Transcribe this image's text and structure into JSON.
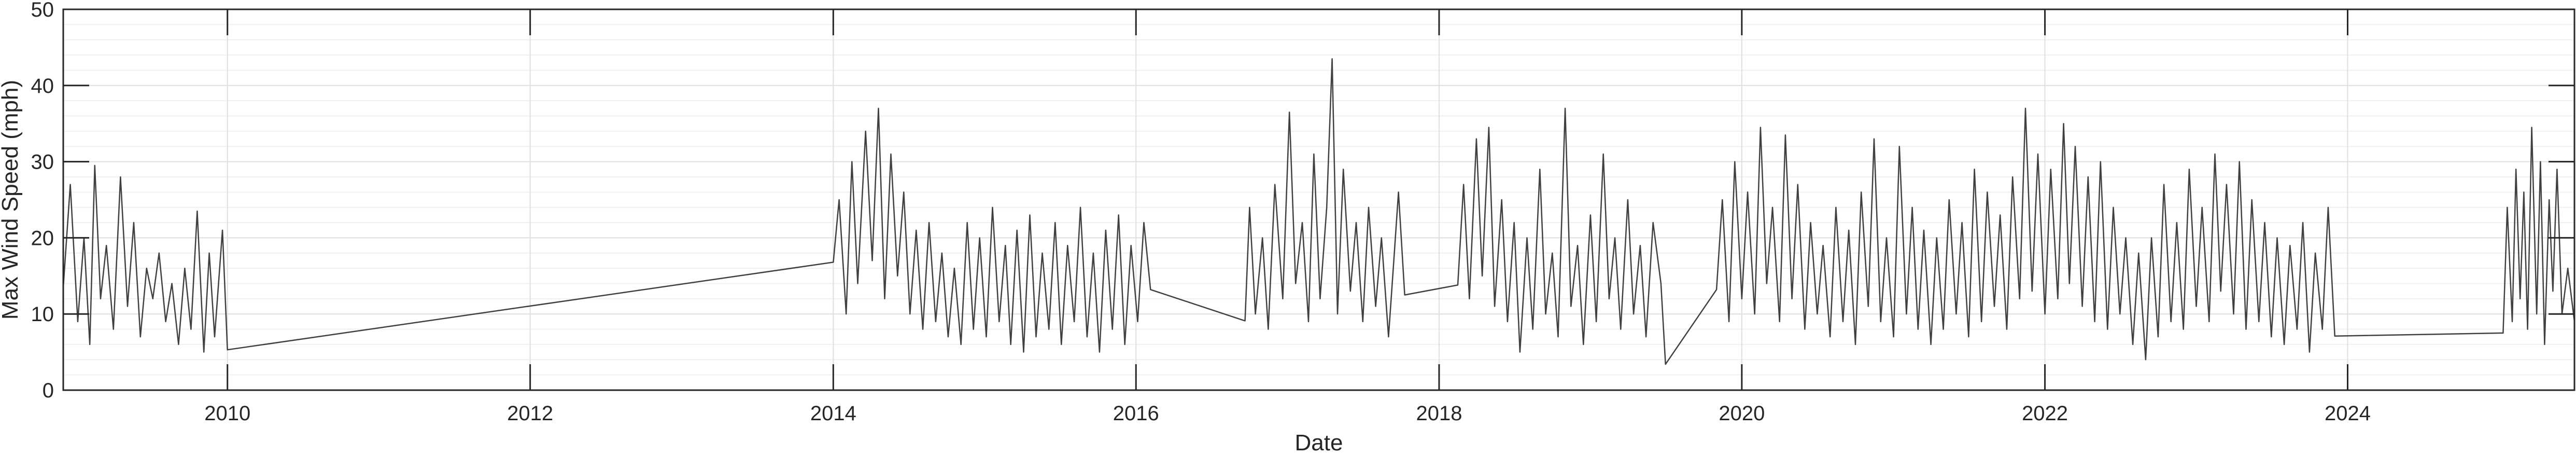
{
  "chart_data": {
    "type": "line",
    "xlabel": "Date",
    "ylabel": "Max Wind Speed (mph)",
    "xlim": [
      "2008-12-01",
      "2025-07-01"
    ],
    "ylim": [
      0,
      50
    ],
    "x_ticks": [
      "2010-01-01",
      "2012-01-01",
      "2014-01-01",
      "2016-01-01",
      "2018-01-01",
      "2020-01-01",
      "2022-01-01",
      "2024-01-01"
    ],
    "x_tick_labels": [
      "2010",
      "2012",
      "2014",
      "2016",
      "2018",
      "2020",
      "2022",
      "2024"
    ],
    "y_ticks": [
      0,
      10,
      20,
      30,
      40,
      50
    ],
    "y_tick_labels": [
      "0",
      "10",
      "20",
      "30",
      "40",
      "50"
    ],
    "grid": true,
    "minor_grid": true,
    "line_color": "#404040",
    "series": [
      {
        "points": [
          [
            "2008-12-01",
            13.5
          ],
          [
            "2008-12-18",
            27
          ],
          [
            "2009-01-05",
            9
          ],
          [
            "2009-01-20",
            20
          ],
          [
            "2009-02-03",
            6
          ],
          [
            "2009-02-15",
            29.5
          ],
          [
            "2009-03-01",
            12
          ],
          [
            "2009-03-15",
            19
          ],
          [
            "2009-04-01",
            8
          ],
          [
            "2009-04-18",
            28
          ],
          [
            "2009-05-05",
            11
          ],
          [
            "2009-05-20",
            22
          ],
          [
            "2009-06-05",
            7
          ],
          [
            "2009-06-20",
            16
          ],
          [
            "2009-07-05",
            12
          ],
          [
            "2009-07-20",
            18
          ],
          [
            "2009-08-05",
            9
          ],
          [
            "2009-08-20",
            14
          ],
          [
            "2009-09-05",
            6
          ],
          [
            "2009-09-20",
            16
          ],
          [
            "2009-10-05",
            8
          ],
          [
            "2009-10-20",
            23.5
          ],
          [
            "2009-11-05",
            5
          ],
          [
            "2009-11-18",
            18
          ],
          [
            "2009-12-01",
            7
          ],
          [
            "2009-12-20",
            21
          ],
          [
            "2010-01-01",
            5.3
          ],
          [
            "2014-01-01",
            16.8
          ],
          [
            "2014-01-15",
            25
          ],
          [
            "2014-02-01",
            10
          ],
          [
            "2014-02-15",
            30
          ],
          [
            "2014-03-01",
            14
          ],
          [
            "2014-03-20",
            34
          ],
          [
            "2014-04-05",
            17
          ],
          [
            "2014-04-20",
            37
          ],
          [
            "2014-05-05",
            12
          ],
          [
            "2014-05-20",
            31
          ],
          [
            "2014-06-05",
            15
          ],
          [
            "2014-06-20",
            26
          ],
          [
            "2014-07-05",
            10
          ],
          [
            "2014-07-20",
            21
          ],
          [
            "2014-08-05",
            8
          ],
          [
            "2014-08-20",
            22
          ],
          [
            "2014-09-05",
            9
          ],
          [
            "2014-09-20",
            18
          ],
          [
            "2014-10-05",
            7
          ],
          [
            "2014-10-20",
            16
          ],
          [
            "2014-11-05",
            6
          ],
          [
            "2014-11-20",
            22
          ],
          [
            "2014-12-05",
            8
          ],
          [
            "2014-12-20",
            20
          ],
          [
            "2015-01-05",
            7
          ],
          [
            "2015-01-20",
            24
          ],
          [
            "2015-02-05",
            9
          ],
          [
            "2015-02-20",
            19
          ],
          [
            "2015-03-05",
            6
          ],
          [
            "2015-03-20",
            21
          ],
          [
            "2015-04-05",
            5
          ],
          [
            "2015-04-20",
            23
          ],
          [
            "2015-05-05",
            7
          ],
          [
            "2015-05-20",
            18
          ],
          [
            "2015-06-05",
            8
          ],
          [
            "2015-06-20",
            22
          ],
          [
            "2015-07-05",
            6
          ],
          [
            "2015-07-20",
            19
          ],
          [
            "2015-08-05",
            9
          ],
          [
            "2015-08-20",
            24
          ],
          [
            "2015-09-05",
            7
          ],
          [
            "2015-09-20",
            18
          ],
          [
            "2015-10-05",
            5
          ],
          [
            "2015-10-20",
            21
          ],
          [
            "2015-11-05",
            8
          ],
          [
            "2015-11-20",
            23
          ],
          [
            "2015-12-05",
            6
          ],
          [
            "2015-12-20",
            19
          ],
          [
            "2016-01-05",
            9
          ],
          [
            "2016-01-20",
            22
          ],
          [
            "2016-02-05",
            13.2
          ],
          [
            "2016-09-20",
            9.1
          ],
          [
            "2016-10-01",
            24
          ],
          [
            "2016-10-15",
            10
          ],
          [
            "2016-11-01",
            20
          ],
          [
            "2016-11-15",
            8
          ],
          [
            "2016-12-01",
            27
          ],
          [
            "2016-12-20",
            12
          ],
          [
            "2017-01-05",
            36.5
          ],
          [
            "2017-01-20",
            14
          ],
          [
            "2017-02-05",
            22
          ],
          [
            "2017-02-20",
            9
          ],
          [
            "2017-03-05",
            31
          ],
          [
            "2017-03-20",
            12
          ],
          [
            "2017-04-05",
            24
          ],
          [
            "2017-04-18",
            43.5
          ],
          [
            "2017-05-01",
            10
          ],
          [
            "2017-05-15",
            29
          ],
          [
            "2017-06-01",
            13
          ],
          [
            "2017-06-15",
            22
          ],
          [
            "2017-07-01",
            9
          ],
          [
            "2017-07-15",
            24
          ],
          [
            "2017-08-01",
            11
          ],
          [
            "2017-08-15",
            20
          ],
          [
            "2017-09-01",
            7
          ],
          [
            "2017-09-15",
            18
          ],
          [
            "2017-09-25",
            26
          ],
          [
            "2017-10-10",
            12.5
          ],
          [
            "2018-02-15",
            13.8
          ],
          [
            "2018-03-01",
            27
          ],
          [
            "2018-03-15",
            12
          ],
          [
            "2018-04-01",
            33
          ],
          [
            "2018-04-15",
            15
          ],
          [
            "2018-05-01",
            34.5
          ],
          [
            "2018-05-15",
            11
          ],
          [
            "2018-06-01",
            25
          ],
          [
            "2018-06-15",
            9
          ],
          [
            "2018-07-01",
            22
          ],
          [
            "2018-07-15",
            5
          ],
          [
            "2018-08-01",
            20
          ],
          [
            "2018-08-15",
            8
          ],
          [
            "2018-09-01",
            29
          ],
          [
            "2018-09-15",
            10
          ],
          [
            "2018-10-01",
            18
          ],
          [
            "2018-10-15",
            7
          ],
          [
            "2018-11-01",
            37
          ],
          [
            "2018-11-15",
            11
          ],
          [
            "2018-12-01",
            19
          ],
          [
            "2018-12-15",
            6
          ],
          [
            "2019-01-01",
            23
          ],
          [
            "2019-01-15",
            9
          ],
          [
            "2019-02-01",
            31
          ],
          [
            "2019-02-15",
            12
          ],
          [
            "2019-03-01",
            20
          ],
          [
            "2019-03-15",
            8
          ],
          [
            "2019-04-01",
            25
          ],
          [
            "2019-04-15",
            10
          ],
          [
            "2019-05-01",
            19
          ],
          [
            "2019-05-15",
            7
          ],
          [
            "2019-06-01",
            22
          ],
          [
            "2019-06-20",
            14
          ],
          [
            "2019-07-01",
            3.4
          ],
          [
            "2019-11-01",
            13.2
          ],
          [
            "2019-11-15",
            25
          ],
          [
            "2019-12-01",
            9
          ],
          [
            "2019-12-15",
            30
          ],
          [
            "2020-01-01",
            12
          ],
          [
            "2020-01-15",
            26
          ],
          [
            "2020-02-01",
            10
          ],
          [
            "2020-02-15",
            34.5
          ],
          [
            "2020-03-01",
            14
          ],
          [
            "2020-03-15",
            24
          ],
          [
            "2020-04-01",
            9
          ],
          [
            "2020-04-15",
            33.5
          ],
          [
            "2020-05-01",
            12
          ],
          [
            "2020-05-15",
            27
          ],
          [
            "2020-06-01",
            8
          ],
          [
            "2020-06-15",
            22
          ],
          [
            "2020-07-01",
            10
          ],
          [
            "2020-07-15",
            19
          ],
          [
            "2020-08-01",
            7
          ],
          [
            "2020-08-15",
            24
          ],
          [
            "2020-09-01",
            9
          ],
          [
            "2020-09-15",
            21
          ],
          [
            "2020-10-01",
            6
          ],
          [
            "2020-10-15",
            26
          ],
          [
            "2020-11-01",
            11
          ],
          [
            "2020-11-15",
            33
          ],
          [
            "2020-12-01",
            9
          ],
          [
            "2020-12-15",
            20
          ],
          [
            "2021-01-01",
            7
          ],
          [
            "2021-01-15",
            32
          ],
          [
            "2021-02-01",
            10
          ],
          [
            "2021-02-15",
            24
          ],
          [
            "2021-03-01",
            8
          ],
          [
            "2021-03-15",
            21
          ],
          [
            "2021-04-01",
            6
          ],
          [
            "2021-04-15",
            20
          ],
          [
            "2021-05-01",
            8
          ],
          [
            "2021-05-15",
            25
          ],
          [
            "2021-06-01",
            10
          ],
          [
            "2021-06-15",
            22
          ],
          [
            "2021-07-01",
            7
          ],
          [
            "2021-07-15",
            29
          ],
          [
            "2021-08-01",
            9
          ],
          [
            "2021-08-15",
            26
          ],
          [
            "2021-09-01",
            11
          ],
          [
            "2021-09-15",
            23
          ],
          [
            "2021-10-01",
            8
          ],
          [
            "2021-10-15",
            28
          ],
          [
            "2021-11-01",
            12
          ],
          [
            "2021-11-15",
            37
          ],
          [
            "2021-12-01",
            13
          ],
          [
            "2021-12-15",
            31
          ],
          [
            "2022-01-01",
            10
          ],
          [
            "2022-01-15",
            29
          ],
          [
            "2022-02-01",
            12
          ],
          [
            "2022-02-15",
            35
          ],
          [
            "2022-03-01",
            14
          ],
          [
            "2022-03-15",
            32
          ],
          [
            "2022-04-01",
            11
          ],
          [
            "2022-04-15",
            28
          ],
          [
            "2022-05-01",
            9
          ],
          [
            "2022-05-15",
            30
          ],
          [
            "2022-06-01",
            8
          ],
          [
            "2022-06-15",
            24
          ],
          [
            "2022-07-01",
            10
          ],
          [
            "2022-07-15",
            20
          ],
          [
            "2022-08-01",
            6
          ],
          [
            "2022-08-15",
            18
          ],
          [
            "2022-09-01",
            4
          ],
          [
            "2022-09-15",
            20
          ],
          [
            "2022-10-01",
            7
          ],
          [
            "2022-10-15",
            27
          ],
          [
            "2022-11-01",
            9
          ],
          [
            "2022-11-15",
            22
          ],
          [
            "2022-12-01",
            8
          ],
          [
            "2022-12-15",
            29
          ],
          [
            "2023-01-01",
            11
          ],
          [
            "2023-01-15",
            24
          ],
          [
            "2023-02-01",
            9
          ],
          [
            "2023-02-15",
            31
          ],
          [
            "2023-03-01",
            13
          ],
          [
            "2023-03-15",
            27
          ],
          [
            "2023-04-01",
            10
          ],
          [
            "2023-04-15",
            30
          ],
          [
            "2023-05-01",
            8
          ],
          [
            "2023-05-15",
            25
          ],
          [
            "2023-06-01",
            9
          ],
          [
            "2023-06-15",
            22
          ],
          [
            "2023-07-01",
            7
          ],
          [
            "2023-07-15",
            20
          ],
          [
            "2023-08-01",
            6
          ],
          [
            "2023-08-15",
            19
          ],
          [
            "2023-09-01",
            8
          ],
          [
            "2023-09-15",
            22
          ],
          [
            "2023-10-01",
            5
          ],
          [
            "2023-10-15",
            18
          ],
          [
            "2023-11-01",
            8
          ],
          [
            "2023-11-15",
            24
          ],
          [
            "2023-12-01",
            7.1
          ],
          [
            "2025-01-10",
            7.5
          ],
          [
            "2025-01-20",
            24
          ],
          [
            "2025-02-01",
            9
          ],
          [
            "2025-02-10",
            29
          ],
          [
            "2025-02-20",
            12
          ],
          [
            "2025-03-01",
            26
          ],
          [
            "2025-03-10",
            8
          ],
          [
            "2025-03-20",
            34.5
          ],
          [
            "2025-04-01",
            10
          ],
          [
            "2025-04-10",
            30
          ],
          [
            "2025-04-20",
            6
          ],
          [
            "2025-05-01",
            25
          ],
          [
            "2025-05-10",
            13
          ],
          [
            "2025-05-20",
            29
          ],
          [
            "2025-06-01",
            10
          ],
          [
            "2025-06-15",
            16
          ],
          [
            "2025-07-01",
            9
          ]
        ]
      }
    ]
  }
}
